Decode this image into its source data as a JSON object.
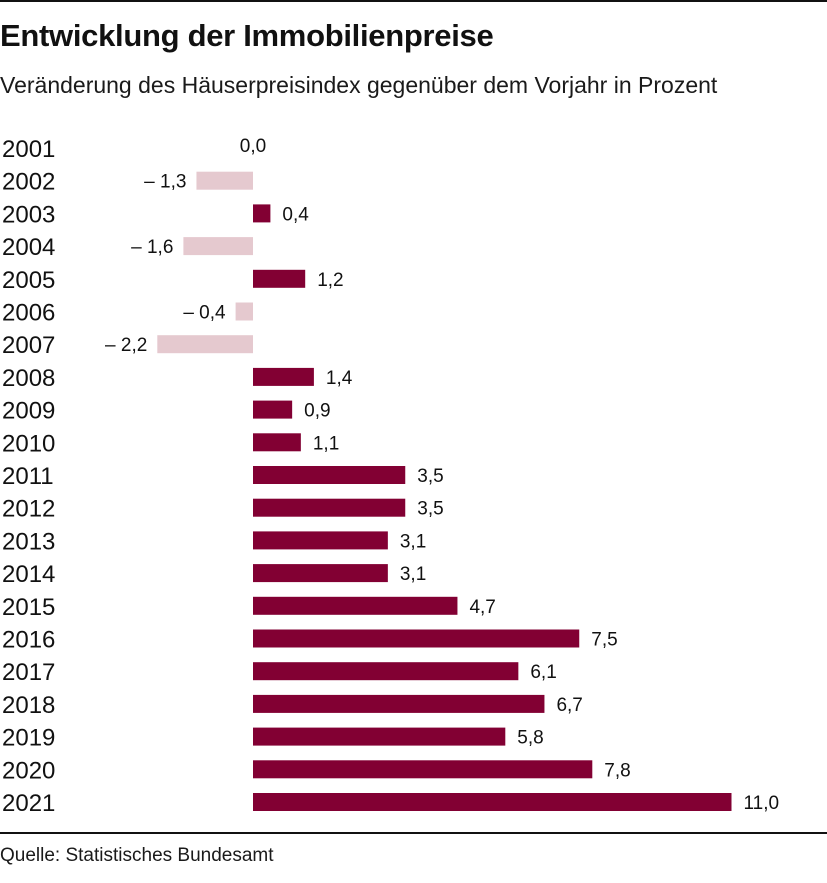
{
  "title": "Entwicklung der Immobilienpreise",
  "subtitle": "Veränderung des Häuserpreisindex gegenüber dem Vorjahr in Prozent",
  "source": "Quelle: Statistisches Bundesamt",
  "colors": {
    "positive": "#820033",
    "negative": "#e5c9cf",
    "text": "#111111"
  },
  "chart_data": {
    "type": "bar",
    "orientation": "horizontal",
    "title": "Entwicklung der Immobilienpreise",
    "subtitle": "Veränderung des Häuserpreisindex gegenüber dem Vorjahr in Prozent",
    "xlabel": "",
    "ylabel": "",
    "xlim": [
      -2.2,
      11.0
    ],
    "grid": false,
    "legend": "none",
    "categories": [
      "2001",
      "2002",
      "2003",
      "2004",
      "2005",
      "2006",
      "2007",
      "2008",
      "2009",
      "2010",
      "2011",
      "2012",
      "2013",
      "2014",
      "2015",
      "2016",
      "2017",
      "2018",
      "2019",
      "2020",
      "2021"
    ],
    "values": [
      0.0,
      -1.3,
      0.4,
      -1.6,
      1.2,
      -0.4,
      -2.2,
      1.4,
      0.9,
      1.1,
      3.5,
      3.5,
      3.1,
      3.1,
      4.7,
      7.5,
      6.1,
      6.7,
      5.8,
      7.8,
      11.0
    ],
    "value_labels": [
      "0,0",
      "– 1,3",
      "0,4",
      "– 1,6",
      "1,2",
      "– 0,4",
      "– 2,2",
      "1,4",
      "0,9",
      "1,1",
      "3,5",
      "3,5",
      "3,1",
      "3,1",
      "4,7",
      "7,5",
      "6,1",
      "6,7",
      "5,8",
      "7,8",
      "11,0"
    ]
  }
}
